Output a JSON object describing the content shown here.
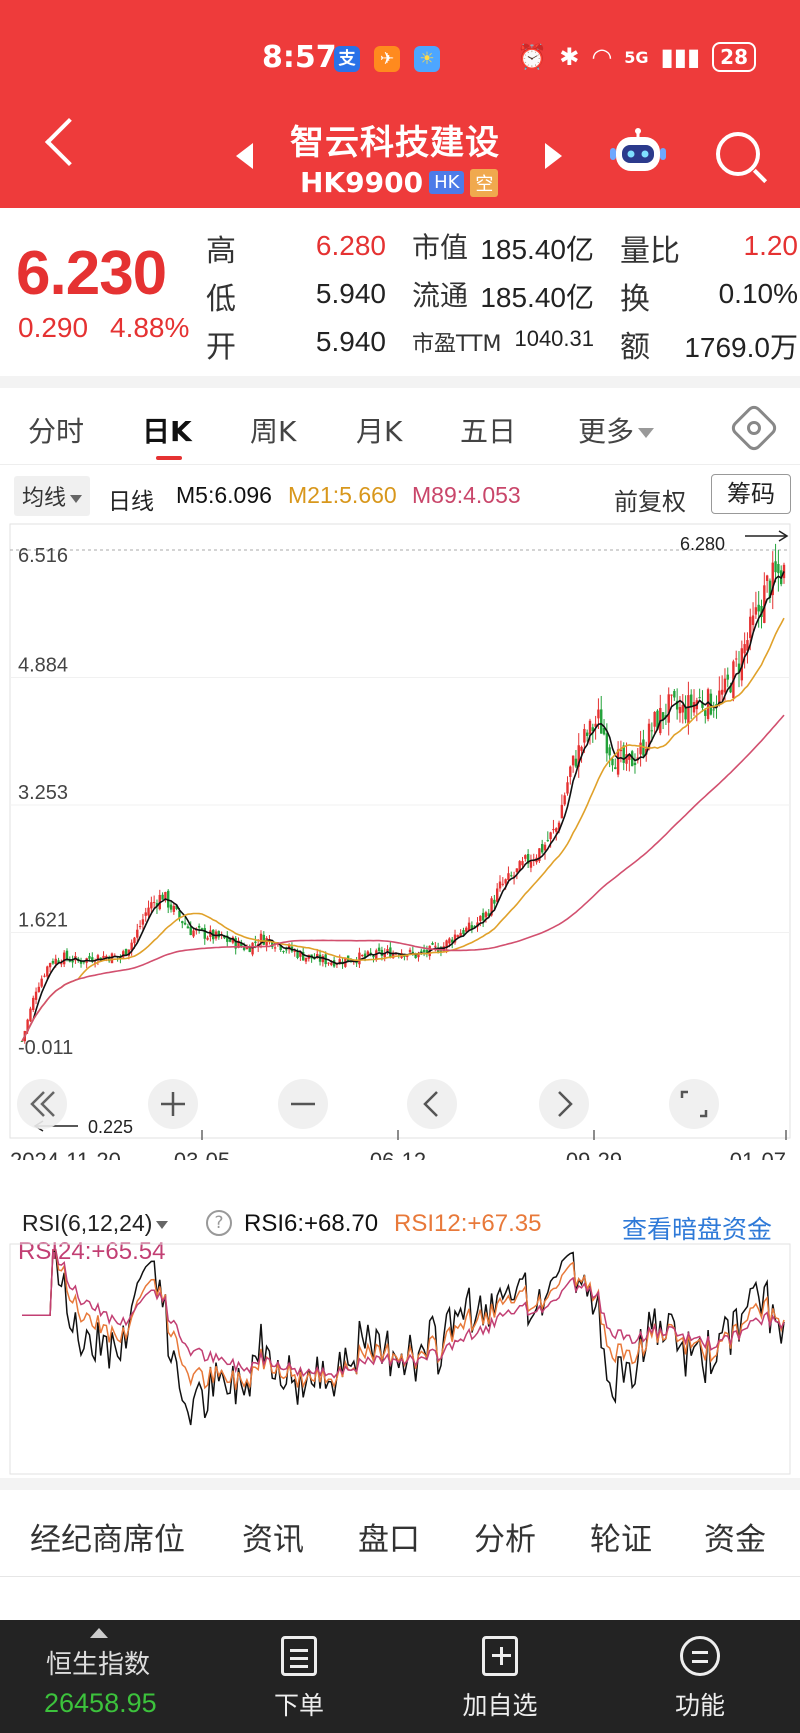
{
  "status_bar": {
    "time": "8:57",
    "battery": "28",
    "network": "5G"
  },
  "header": {
    "title": "智云科技建设",
    "code": "HK9900",
    "tag_hk": "HK",
    "tag_kong": "空"
  },
  "quote": {
    "price": "6.230",
    "change": "0.290",
    "change_pct": "4.88%",
    "fields": [
      {
        "label": "高",
        "value": "6.280"
      },
      {
        "label": "低",
        "value": "5.940"
      },
      {
        "label": "开",
        "value": "5.940"
      },
      {
        "label": "市值",
        "value": "185.40亿"
      },
      {
        "label": "流通",
        "value": "185.40亿"
      },
      {
        "label": "市盈TTM",
        "value": "1040.31"
      },
      {
        "label": "量比",
        "value": "1.20"
      },
      {
        "label": "换",
        "value": "0.10%"
      },
      {
        "label": "额",
        "value": "1769.0万"
      }
    ]
  },
  "tabs": {
    "items": [
      "分时",
      "日K",
      "周K",
      "月K",
      "五日",
      "更多"
    ],
    "active": "日K"
  },
  "ma_legend": {
    "selector": "均线",
    "period": "日线",
    "m5": "M5:6.096",
    "m21": "M21:5.660",
    "m89": "M89:4.053",
    "adjust": "前复权",
    "chip": "筹码"
  },
  "chart_data": [
    {
      "type": "candlestick",
      "y_ticks": [
        "6.516",
        "4.884",
        "3.253",
        "1.621",
        "-0.011"
      ],
      "ylim": [
        -0.011,
        6.516
      ],
      "x_ticks": [
        "2024-11-20",
        "03-05",
        "06-12",
        "09-29",
        "01-07"
      ],
      "high_label": "6.280",
      "low_label": "0.225",
      "series": [
        {
          "name": "M5",
          "color": "#111111"
        },
        {
          "name": "M21",
          "color": "#e0a12a"
        },
        {
          "name": "M89",
          "color": "#d2506f"
        }
      ],
      "close_trend": [
        [
          0,
          0.23
        ],
        [
          5,
          0.9
        ],
        [
          10,
          1.25
        ],
        [
          15,
          1.3
        ],
        [
          20,
          1.25
        ],
        [
          25,
          1.3
        ],
        [
          30,
          1.32
        ],
        [
          35,
          1.3
        ],
        [
          40,
          1.55
        ],
        [
          45,
          1.95
        ],
        [
          50,
          2.1
        ],
        [
          55,
          1.85
        ],
        [
          60,
          1.65
        ],
        [
          65,
          1.6
        ],
        [
          70,
          1.55
        ],
        [
          75,
          1.5
        ],
        [
          80,
          1.42
        ],
        [
          85,
          1.55
        ],
        [
          90,
          1.5
        ],
        [
          95,
          1.4
        ],
        [
          100,
          1.32
        ],
        [
          105,
          1.28
        ],
        [
          110,
          1.25
        ],
        [
          115,
          1.27
        ],
        [
          120,
          1.3
        ],
        [
          125,
          1.32
        ],
        [
          130,
          1.36
        ],
        [
          135,
          1.38
        ],
        [
          140,
          1.33
        ],
        [
          145,
          1.38
        ],
        [
          150,
          1.45
        ],
        [
          155,
          1.62
        ],
        [
          160,
          1.68
        ],
        [
          165,
          1.85
        ],
        [
          170,
          2.2
        ],
        [
          175,
          2.35
        ],
        [
          180,
          2.55
        ],
        [
          185,
          2.7
        ],
        [
          190,
          2.95
        ],
        [
          195,
          3.7
        ],
        [
          200,
          4.1
        ],
        [
          205,
          4.35
        ],
        [
          210,
          3.9
        ],
        [
          215,
          3.75
        ],
        [
          220,
          3.95
        ],
        [
          225,
          4.3
        ],
        [
          230,
          4.5
        ],
        [
          235,
          4.45
        ],
        [
          240,
          4.6
        ],
        [
          245,
          4.55
        ],
        [
          250,
          4.7
        ],
        [
          255,
          5.1
        ],
        [
          260,
          5.55
        ],
        [
          265,
          6.05
        ],
        [
          270,
          6.23
        ]
      ]
    },
    {
      "type": "line",
      "series": [
        {
          "name": "RSI6",
          "color": "#111111"
        },
        {
          "name": "RSI12",
          "color": "#e8793a"
        },
        {
          "name": "RSI24",
          "color": "#c23f73"
        }
      ]
    }
  ],
  "rsi": {
    "selector": "RSI(6,12,24)",
    "rsi6": "RSI6:+68.70",
    "rsi12": "RSI12:+67.35",
    "rsi24": "RSI24:+65.54",
    "link": "查看暗盘资金",
    "help": "?"
  },
  "subtabs": [
    "经纪商席位",
    "资讯",
    "盘口",
    "分析",
    "轮证",
    "资金"
  ],
  "bottom_bar": {
    "index_name": "恒生指数",
    "index_value": "26458.95",
    "buttons": [
      "下单",
      "加自选",
      "功能"
    ]
  }
}
